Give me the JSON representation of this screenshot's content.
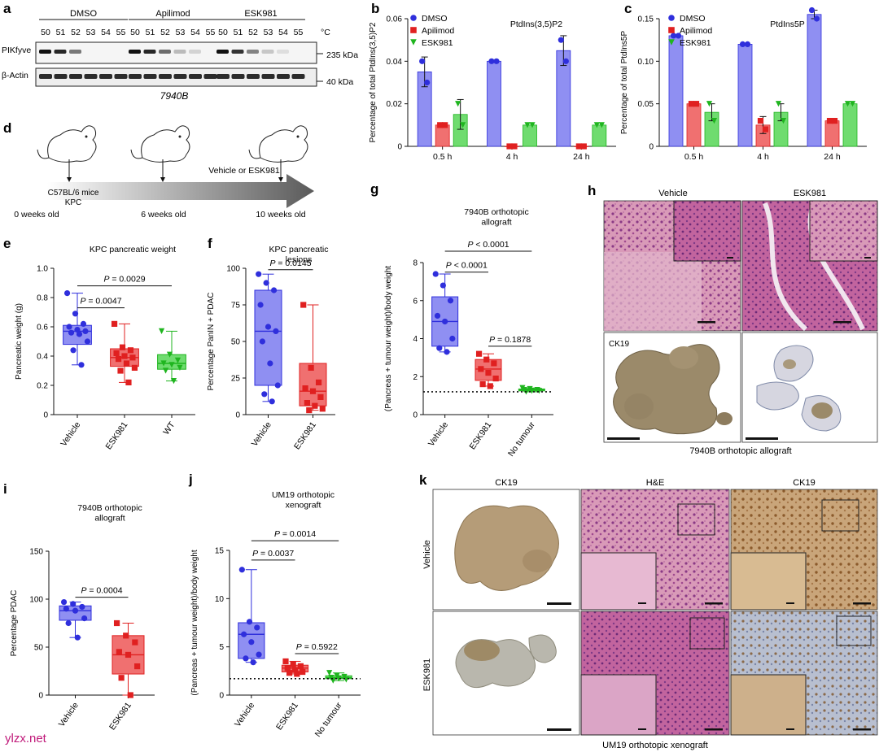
{
  "watermark": "ylzx.net",
  "colors": {
    "blue": "#2f2fdc",
    "blue_fill": "#8f8ff2",
    "red": "#e02020",
    "red_fill": "#f07070",
    "green": "#1fb51f",
    "green_fill": "#6fdc6f"
  },
  "panel_a": {
    "letter": "a",
    "groups": [
      "DMSO",
      "Apilimod",
      "ESK981"
    ],
    "temps": [
      "50",
      "51",
      "52",
      "53",
      "54",
      "55"
    ],
    "unit": "°C",
    "rows": [
      "PIKfyve",
      "β-Actin"
    ],
    "sizes": [
      "235 kDa",
      "40 kDa"
    ],
    "cell_line": "7940B",
    "band_intensity": [
      [
        1,
        0.9,
        0.55,
        0,
        0,
        0
      ],
      [
        1,
        0.9,
        0.6,
        0.25,
        0.15,
        0
      ],
      [
        1,
        0.85,
        0.5,
        0.2,
        0.1,
        0
      ]
    ]
  },
  "panel_d": {
    "letter": "d",
    "mouse_label": "C57BL/6 mice\nKPC",
    "ages": [
      "0 weeks old",
      "6 weeks old",
      "10 weeks old"
    ],
    "treatment": "Vehicle or ESK981"
  },
  "chart_data": [
    {
      "id": "b",
      "type": "bar",
      "letter": "b",
      "title": "PtdIns(3,5)P2",
      "ylabel": "Percentage of total PtdIns(3,5)P2",
      "categories": [
        "0.5 h",
        "4 h",
        "24 h"
      ],
      "ylim": [
        0,
        0.06
      ],
      "yticks": [
        "0",
        "0.02",
        "0.04",
        "0.06"
      ],
      "ytick_values": [
        0,
        0.02,
        0.04,
        0.06
      ],
      "series": [
        {
          "name": "DMSO",
          "values": [
            0.035,
            0.04,
            0.045
          ],
          "err": [
            0.007,
            0,
            0.007
          ],
          "points": [
            [
              0.04,
              0.03
            ],
            [
              0.04,
              0.04
            ],
            [
              0.05,
              0.04
            ]
          ]
        },
        {
          "name": "Apilimod",
          "values": [
            0.01,
            0.0,
            0.0
          ],
          "err": [
            0,
            0,
            0
          ],
          "points": [
            [
              0.01,
              0.01
            ],
            [
              0,
              0
            ],
            [
              0,
              0
            ]
          ]
        },
        {
          "name": "ESK981",
          "values": [
            0.015,
            0.01,
            0.01
          ],
          "err": [
            0.007,
            0,
            0
          ],
          "points": [
            [
              0.02,
              0.01
            ],
            [
              0.01,
              0.01
            ],
            [
              0.01,
              0.01
            ]
          ]
        }
      ]
    },
    {
      "id": "c",
      "type": "bar",
      "letter": "c",
      "title": "PtdIns5P",
      "ylabel": "Percentage of total PtdIns5P",
      "categories": [
        "0.5 h",
        "4 h",
        "24 h"
      ],
      "ylim": [
        0,
        0.15
      ],
      "yticks": [
        "0",
        "0.05",
        "0.10",
        "0.15"
      ],
      "ytick_values": [
        0,
        0.05,
        0.1,
        0.15
      ],
      "series": [
        {
          "name": "DMSO",
          "values": [
            0.13,
            0.12,
            0.155
          ],
          "err": [
            0,
            0,
            0.005
          ],
          "points": [
            [
              0.13,
              0.13
            ],
            [
              0.12,
              0.12
            ],
            [
              0.16,
              0.15
            ]
          ]
        },
        {
          "name": "Apilimod",
          "values": [
            0.05,
            0.025,
            0.03
          ],
          "err": [
            0,
            0.01,
            0
          ],
          "points": [
            [
              0.05,
              0.05
            ],
            [
              0.03,
              0.02
            ],
            [
              0.03,
              0.03
            ]
          ]
        },
        {
          "name": "ESK981",
          "values": [
            0.04,
            0.04,
            0.05
          ],
          "err": [
            0.01,
            0.01,
            0
          ],
          "points": [
            [
              0.05,
              0.03
            ],
            [
              0.05,
              0.03
            ],
            [
              0.05,
              0.05
            ]
          ]
        }
      ]
    },
    {
      "id": "e",
      "type": "box",
      "letter": "e",
      "title": "KPC pancreatic weight",
      "ylabel": "Pancreatic weight (g)",
      "categories": [
        "Vehicle",
        "ESK981",
        "WT"
      ],
      "ylim": [
        0,
        1.0
      ],
      "yticks": [
        "0",
        "0.2",
        "0.4",
        "0.6",
        "0.8",
        "1.0"
      ],
      "ytick_values": [
        0,
        0.2,
        0.4,
        0.6,
        0.8,
        1.0
      ],
      "boxes": [
        {
          "min": 0.34,
          "q1": 0.48,
          "median": 0.57,
          "q3": 0.61,
          "max": 0.83,
          "points": [
            0.83,
            0.69,
            0.62,
            0.6,
            0.58,
            0.57,
            0.56,
            0.55,
            0.5,
            0.44,
            0.34
          ]
        },
        {
          "min": 0.22,
          "q1": 0.33,
          "median": 0.39,
          "q3": 0.45,
          "max": 0.62,
          "points": [
            0.62,
            0.46,
            0.44,
            0.42,
            0.4,
            0.39,
            0.38,
            0.35,
            0.32,
            0.3,
            0.22
          ]
        },
        {
          "min": 0.23,
          "q1": 0.31,
          "median": 0.35,
          "q3": 0.41,
          "max": 0.57,
          "points": [
            0.57,
            0.41,
            0.37,
            0.35,
            0.34,
            0.32,
            0.3,
            0.23
          ]
        }
      ],
      "pvalues": [
        {
          "label": "P = 0.0029",
          "from": 0,
          "to": 2,
          "y": 0.88
        },
        {
          "label": "P = 0.0047",
          "from": 0,
          "to": 1,
          "y": 0.73
        }
      ]
    },
    {
      "id": "f",
      "type": "box",
      "letter": "f",
      "title": "KPC pancreatic\nlesions",
      "ylabel": "Percentage PanIN + PDAC",
      "categories": [
        "Vehicle",
        "ESK981"
      ],
      "ylim": [
        0,
        100
      ],
      "yticks": [
        "0",
        "25",
        "50",
        "75",
        "100"
      ],
      "ytick_values": [
        0,
        25,
        50,
        75,
        100
      ],
      "boxes": [
        {
          "min": 9,
          "q1": 20,
          "median": 57,
          "q3": 85,
          "max": 96,
          "points": [
            96,
            90,
            85,
            75,
            60,
            57,
            50,
            35,
            20,
            14,
            9
          ]
        },
        {
          "min": 3,
          "q1": 6,
          "median": 16,
          "q3": 35,
          "max": 75,
          "points": [
            75,
            32,
            22,
            18,
            16,
            12,
            8,
            6,
            4,
            3
          ]
        }
      ],
      "pvalues": [
        {
          "label": "P = 0.0145",
          "from": 0,
          "to": 1,
          "y": 99
        }
      ]
    },
    {
      "id": "g",
      "type": "box",
      "letter": "g",
      "title": "7940B orthotopic\nallograft",
      "ylabel": "(Pancreas + tumour weight)/body weight",
      "categories": [
        "Vehicle",
        "ESK981",
        "No tumour"
      ],
      "ylim": [
        0,
        8
      ],
      "yticks": [
        "0",
        "2",
        "4",
        "6",
        "8"
      ],
      "ytick_values": [
        0,
        2,
        4,
        6,
        8
      ],
      "baseline": 1.2,
      "boxes": [
        {
          "min": 3.3,
          "q1": 3.6,
          "median": 4.9,
          "q3": 6.2,
          "max": 7.4,
          "points": [
            7.4,
            6.8,
            6.0,
            5.2,
            4.9,
            4.0,
            3.5,
            3.3
          ]
        },
        {
          "min": 1.5,
          "q1": 1.8,
          "median": 2.4,
          "q3": 2.9,
          "max": 3.2,
          "points": [
            3.2,
            2.9,
            2.7,
            2.4,
            2.2,
            1.9,
            1.6,
            1.5
          ]
        },
        {
          "min": 1.2,
          "q1": 1.25,
          "median": 1.3,
          "q3": 1.35,
          "max": 1.4,
          "points": [
            1.4,
            1.35,
            1.3,
            1.3,
            1.25,
            1.25,
            1.2
          ]
        }
      ],
      "pvalues": [
        {
          "label": "P < 0.0001",
          "from": 0,
          "to": 2,
          "y": 8.6
        },
        {
          "label": "P < 0.0001",
          "from": 0,
          "to": 1,
          "y": 7.5
        },
        {
          "label": "P = 0.1878",
          "from": 1,
          "to": 2,
          "y": 3.6
        }
      ]
    },
    {
      "id": "i",
      "type": "box",
      "letter": "i",
      "title": "7940B orthotopic\nallograft",
      "ylabel": "Percentage PDAC",
      "categories": [
        "Vehicle",
        "ESK981"
      ],
      "ylim": [
        0,
        150
      ],
      "yticks": [
        "0",
        "50",
        "100",
        "150"
      ],
      "ytick_values": [
        0,
        50,
        100,
        150
      ],
      "boxes": [
        {
          "min": 60,
          "q1": 78,
          "median": 88,
          "q3": 93,
          "max": 97,
          "points": [
            97,
            95,
            92,
            90,
            88,
            80,
            75,
            60
          ]
        },
        {
          "min": 0,
          "q1": 22,
          "median": 42,
          "q3": 62,
          "max": 75,
          "points": [
            75,
            62,
            55,
            45,
            42,
            30,
            18,
            0
          ]
        }
      ],
      "pvalues": [
        {
          "label": "P = 0.0004",
          "from": 0,
          "to": 1,
          "y": 102
        }
      ]
    },
    {
      "id": "j",
      "type": "box",
      "letter": "j",
      "title": "UM19 orthotopic\nxenograft",
      "ylabel": "(Pancreas + tumour weight)/body weight",
      "categories": [
        "Vehicle",
        "ESK981",
        "No tumour"
      ],
      "ylim": [
        0,
        15
      ],
      "yticks": [
        "0",
        "5",
        "10",
        "15"
      ],
      "ytick_values": [
        0,
        5,
        10,
        15
      ],
      "baseline": 1.7,
      "boxes": [
        {
          "min": 3.4,
          "q1": 3.8,
          "median": 6.3,
          "q3": 7.5,
          "max": 13.0,
          "points": [
            13.0,
            7.6,
            7.0,
            6.3,
            5.5,
            4.2,
            3.8,
            3.4
          ]
        },
        {
          "min": 2.2,
          "q1": 2.4,
          "median": 2.8,
          "q3": 3.1,
          "max": 3.5,
          "points": [
            3.5,
            3.2,
            3.0,
            2.8,
            2.6,
            2.4,
            2.3,
            2.2
          ]
        },
        {
          "min": 1.5,
          "q1": 1.7,
          "median": 1.8,
          "q3": 2.0,
          "max": 2.3,
          "points": [
            2.3,
            2.0,
            1.9,
            1.8,
            1.7,
            1.6,
            1.5
          ]
        }
      ],
      "pvalues": [
        {
          "label": "P = 0.0014",
          "from": 0,
          "to": 2,
          "y": 16.0
        },
        {
          "label": "P = 0.0037",
          "from": 0,
          "to": 1,
          "y": 14.0
        },
        {
          "label": "P = 0.5922",
          "from": 1,
          "to": 2,
          "y": 4.3
        }
      ]
    }
  ],
  "panel_h": {
    "letter": "h",
    "cols": [
      "Vehicle",
      "ESK981"
    ],
    "row_label": "CK19",
    "caption": "7940B orthotopic allograft"
  },
  "panel_k": {
    "letter": "k",
    "cols": [
      "CK19",
      "H&E",
      "CK19"
    ],
    "rows": [
      "Vehicle",
      "ESK981"
    ],
    "caption": "UM19 orthotopic xenograft"
  }
}
